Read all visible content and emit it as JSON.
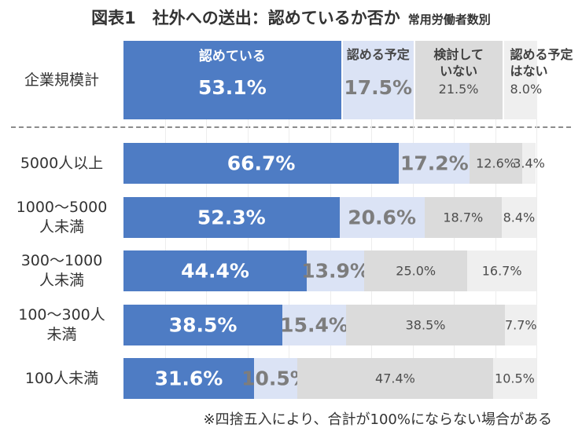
{
  "title": "図表1　社外への送出：認めているか否か",
  "subtitle": "常用労働者数別",
  "footnote": "※四捨五入により、合計が100%にならない場合がある",
  "colors": {
    "series": [
      "#4e7cc4",
      "#dbe3f5",
      "#dbdbdb",
      "#efefef"
    ],
    "pct_text": [
      "#ffffff",
      "#7d7d7d",
      "#4d4d4d",
      "#4d4d4d"
    ],
    "name_text": [
      "#ffffff",
      "#474747",
      "#404040",
      "#404040"
    ],
    "gridline": "#ededed",
    "separator": "#8c8c8c"
  },
  "chart_data": {
    "type": "bar",
    "orientation": "horizontal-stacked-100percent",
    "title": "図表1　社外への送出：認めているか否か",
    "subtitle": "常用労働者数別",
    "footnote": "※四捨五入により、合計が100%にならない場合がある",
    "xlim": [
      0,
      100
    ],
    "grid": "vertical lines every 10%",
    "legend_position": "inside first bar segments",
    "value_suffix": "%",
    "categories": [
      "企業規模計",
      "5000人以上",
      "1000～5000人未満",
      "300～1000人未満",
      "100～300人未満",
      "100人未満"
    ],
    "category_label_lines": [
      [
        "企業規模計"
      ],
      [
        "5000人以上"
      ],
      [
        "1000～5000",
        "人未満"
      ],
      [
        "300～1000",
        "人未満"
      ],
      [
        "100～300人",
        "未満"
      ],
      [
        "100人未満"
      ]
    ],
    "series": [
      {
        "name": "認めている",
        "name_lines": [
          "認めている"
        ],
        "values": [
          53.1,
          66.7,
          52.3,
          44.4,
          38.5,
          31.6
        ]
      },
      {
        "name": "認める予定",
        "name_lines": [
          "認める予定"
        ],
        "values": [
          17.5,
          17.2,
          20.6,
          13.9,
          15.4,
          10.5
        ]
      },
      {
        "name": "検討していない",
        "name_lines": [
          "検討して",
          "いない"
        ],
        "values": [
          21.5,
          12.6,
          18.7,
          25.0,
          38.5,
          47.4
        ]
      },
      {
        "name": "認める予定はない",
        "name_lines": [
          "認める予定",
          "はない"
        ],
        "values": [
          8.0,
          3.4,
          8.4,
          16.7,
          7.7,
          10.5
        ]
      }
    ]
  }
}
